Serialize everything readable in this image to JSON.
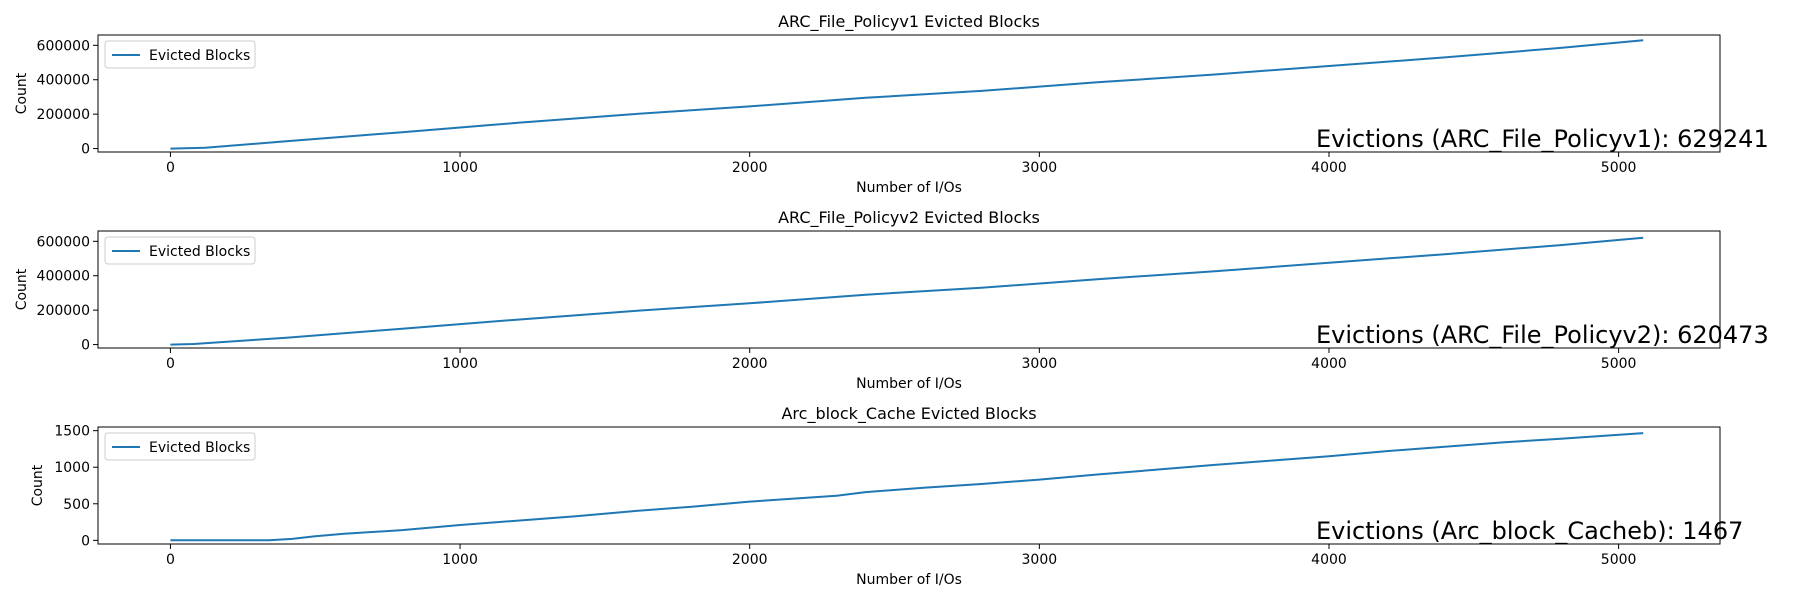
{
  "chart_data": [
    {
      "type": "line",
      "title": "ARC_File_Policyv1 Evicted Blocks",
      "xlabel": "Number of I/Os",
      "ylabel": "Count",
      "xlim": [
        -250,
        5350
      ],
      "ylim": [
        -20000,
        660000
      ],
      "xticks": [
        0,
        1000,
        2000,
        3000,
        4000,
        5000
      ],
      "xtick_labels": [
        "0",
        "1000",
        "2000",
        "3000",
        "4000",
        "5000"
      ],
      "yticks": [
        0,
        200000,
        400000,
        600000
      ],
      "ytick_labels": [
        "0",
        "200000",
        "400000",
        "600000"
      ],
      "grid": false,
      "legend_position": "upper-left",
      "annotation": "Evictions (ARC_File_Policyv1): 629241",
      "series": [
        {
          "name": "Evicted Blocks",
          "color": "#1f77b4",
          "x": [
            0,
            120,
            400,
            800,
            1200,
            1600,
            2000,
            2400,
            2800,
            3200,
            3600,
            4000,
            4400,
            4800,
            5085
          ],
          "y": [
            0,
            5000,
            42000,
            95000,
            150000,
            200000,
            245000,
            295000,
            335000,
            385000,
            430000,
            480000,
            530000,
            585000,
            629241
          ]
        }
      ]
    },
    {
      "type": "line",
      "title": "ARC_File_Policyv2 Evicted Blocks",
      "xlabel": "Number of I/Os",
      "ylabel": "Count",
      "xlim": [
        -250,
        5350
      ],
      "ylim": [
        -20000,
        660000
      ],
      "xticks": [
        0,
        1000,
        2000,
        3000,
        4000,
        5000
      ],
      "xtick_labels": [
        "0",
        "1000",
        "2000",
        "3000",
        "4000",
        "5000"
      ],
      "yticks": [
        0,
        200000,
        400000,
        600000
      ],
      "ytick_labels": [
        "0",
        "200000",
        "400000",
        "600000"
      ],
      "grid": false,
      "legend_position": "upper-left",
      "annotation": "Evictions (ARC_File_Policyv2): 620473",
      "series": [
        {
          "name": "Evicted Blocks",
          "color": "#1f77b4",
          "x": [
            0,
            80,
            400,
            800,
            1200,
            1600,
            2000,
            2400,
            2800,
            3200,
            3600,
            4000,
            4400,
            4800,
            5085
          ],
          "y": [
            0,
            3000,
            40000,
            92000,
            145000,
            195000,
            240000,
            290000,
            330000,
            380000,
            425000,
            475000,
            525000,
            578000,
            620473
          ]
        }
      ]
    },
    {
      "type": "line",
      "title": "Arc_block_Cache Evicted Blocks",
      "xlabel": "Number of I/Os",
      "ylabel": "Count",
      "xlim": [
        -250,
        5350
      ],
      "ylim": [
        -50,
        1550
      ],
      "xticks": [
        0,
        1000,
        2000,
        3000,
        4000,
        5000
      ],
      "xtick_labels": [
        "0",
        "1000",
        "2000",
        "3000",
        "4000",
        "5000"
      ],
      "yticks": [
        0,
        500,
        1000,
        1500
      ],
      "ytick_labels": [
        "0",
        "500",
        "1000",
        "1500"
      ],
      "grid": false,
      "legend_position": "upper-left",
      "annotation": "Evictions (Arc_block_Cacheb): 1467",
      "series": [
        {
          "name": "Evicted Blocks",
          "color": "#1f77b4",
          "x": [
            0,
            100,
            200,
            340,
            420,
            500,
            600,
            800,
            1000,
            1200,
            1400,
            1600,
            1800,
            2000,
            2300,
            2400,
            2600,
            2800,
            3000,
            3200,
            3400,
            3600,
            3800,
            4000,
            4200,
            4400,
            4600,
            4800,
            5085
          ],
          "y": [
            0,
            0,
            0,
            0,
            20,
            55,
            90,
            140,
            210,
            270,
            330,
            400,
            460,
            530,
            610,
            660,
            720,
            770,
            830,
            900,
            965,
            1030,
            1090,
            1150,
            1220,
            1280,
            1340,
            1390,
            1467
          ]
        }
      ]
    }
  ]
}
